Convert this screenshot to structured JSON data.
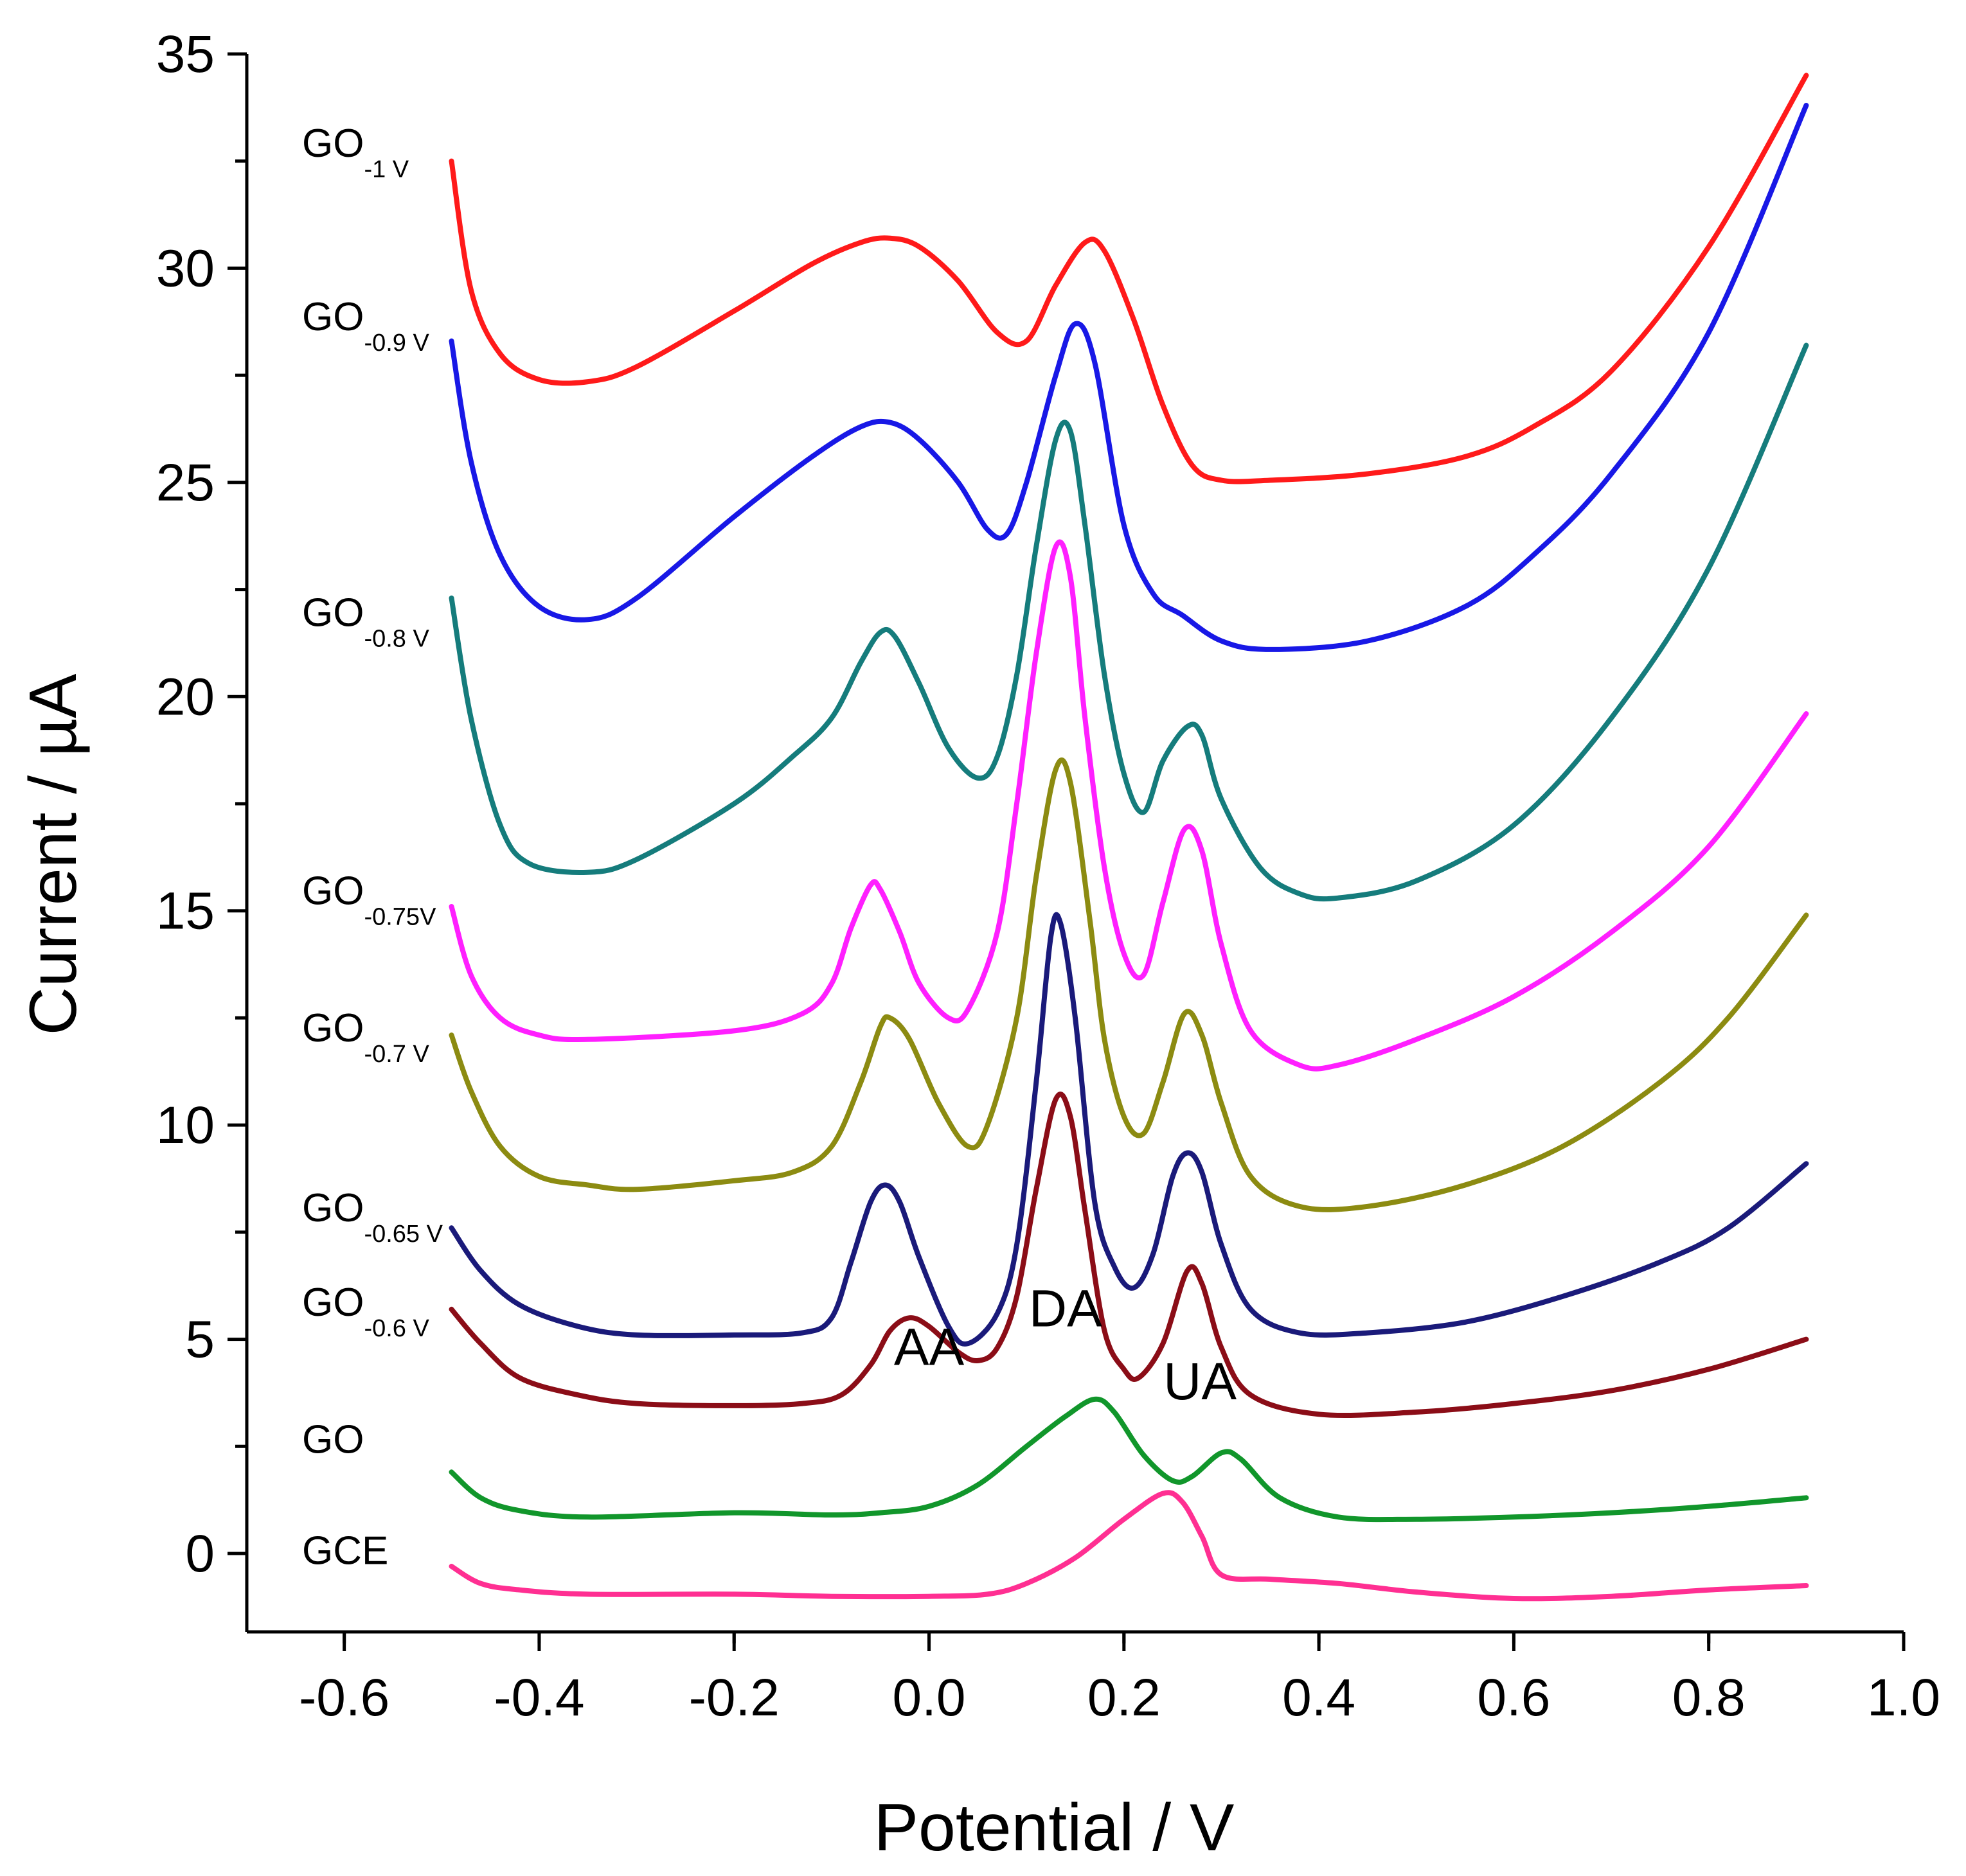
{
  "chart_data": {
    "type": "line",
    "title": "",
    "xlabel": "Potential / V",
    "ylabel": "Current / µA",
    "xlim": [
      -0.7,
      1.0
    ],
    "ylim": [
      -2,
      35
    ],
    "xticks": [
      "-0.6",
      "-0.4",
      "-0.2",
      "0.0",
      "0.2",
      "0.4",
      "0.6",
      "0.8",
      "1.0"
    ],
    "xtick_values": [
      -0.6,
      -0.4,
      -0.2,
      0.0,
      0.2,
      0.4,
      0.6,
      0.8,
      1.0
    ],
    "yticks": [
      "0",
      "5",
      "10",
      "15",
      "20",
      "25",
      "30",
      "35"
    ],
    "ytick_values": [
      0,
      5,
      10,
      15,
      20,
      25,
      30,
      35
    ],
    "annotations": [
      {
        "text": "AA",
        "x": 0.0,
        "y": 4.4
      },
      {
        "text": "DA",
        "x": 0.14,
        "y": 5.3
      },
      {
        "text": "UA",
        "x": 0.278,
        "y": 3.6
      }
    ],
    "series": [
      {
        "name": "GCE",
        "label": "GCE",
        "sub": "",
        "color": "#ff2f92",
        "label_y": -0.25,
        "points": [
          [
            -0.49,
            -0.3
          ],
          [
            -0.46,
            -0.7
          ],
          [
            -0.42,
            -0.85
          ],
          [
            -0.35,
            -0.95
          ],
          [
            -0.2,
            -0.95
          ],
          [
            -0.1,
            -1.0
          ],
          [
            0.0,
            -1.0
          ],
          [
            0.06,
            -0.95
          ],
          [
            0.1,
            -0.7
          ],
          [
            0.15,
            -0.1
          ],
          [
            0.2,
            0.8
          ],
          [
            0.24,
            1.4
          ],
          [
            0.26,
            1.2
          ],
          [
            0.28,
            0.4
          ],
          [
            0.3,
            -0.5
          ],
          [
            0.35,
            -0.6
          ],
          [
            0.42,
            -0.7
          ],
          [
            0.5,
            -0.9
          ],
          [
            0.6,
            -1.05
          ],
          [
            0.7,
            -1.0
          ],
          [
            0.8,
            -0.85
          ],
          [
            0.9,
            -0.75
          ]
        ]
      },
      {
        "name": "GO",
        "label": "GO",
        "sub": "",
        "color": "#11962b",
        "label_y": 2.35,
        "points": [
          [
            -0.49,
            1.9
          ],
          [
            -0.46,
            1.3
          ],
          [
            -0.42,
            1.0
          ],
          [
            -0.35,
            0.85
          ],
          [
            -0.2,
            0.95
          ],
          [
            -0.1,
            0.9
          ],
          [
            -0.05,
            0.95
          ],
          [
            0.0,
            1.1
          ],
          [
            0.05,
            1.6
          ],
          [
            0.1,
            2.5
          ],
          [
            0.14,
            3.2
          ],
          [
            0.17,
            3.6
          ],
          [
            0.19,
            3.3
          ],
          [
            0.22,
            2.3
          ],
          [
            0.25,
            1.7
          ],
          [
            0.27,
            1.8
          ],
          [
            0.3,
            2.35
          ],
          [
            0.32,
            2.2
          ],
          [
            0.36,
            1.3
          ],
          [
            0.42,
            0.85
          ],
          [
            0.5,
            0.8
          ],
          [
            0.6,
            0.85
          ],
          [
            0.7,
            0.95
          ],
          [
            0.8,
            1.1
          ],
          [
            0.9,
            1.3
          ]
        ]
      },
      {
        "name": "GO-0.6 V",
        "label": "GO",
        "sub": "-0.6 V",
        "color": "#8b0d17",
        "label_y": 5.55,
        "points": [
          [
            -0.49,
            5.7
          ],
          [
            -0.46,
            4.9
          ],
          [
            -0.42,
            4.1
          ],
          [
            -0.36,
            3.7
          ],
          [
            -0.3,
            3.5
          ],
          [
            -0.2,
            3.45
          ],
          [
            -0.13,
            3.5
          ],
          [
            -0.09,
            3.7
          ],
          [
            -0.06,
            4.4
          ],
          [
            -0.04,
            5.2
          ],
          [
            -0.02,
            5.5
          ],
          [
            0.0,
            5.3
          ],
          [
            0.03,
            4.7
          ],
          [
            0.05,
            4.5
          ],
          [
            0.07,
            4.8
          ],
          [
            0.09,
            6.0
          ],
          [
            0.11,
            8.5
          ],
          [
            0.13,
            10.6
          ],
          [
            0.145,
            10.2
          ],
          [
            0.16,
            8.0
          ],
          [
            0.18,
            5.2
          ],
          [
            0.2,
            4.3
          ],
          [
            0.215,
            4.1
          ],
          [
            0.24,
            4.9
          ],
          [
            0.265,
            6.6
          ],
          [
            0.28,
            6.3
          ],
          [
            0.3,
            4.8
          ],
          [
            0.33,
            3.7
          ],
          [
            0.4,
            3.25
          ],
          [
            0.5,
            3.3
          ],
          [
            0.6,
            3.5
          ],
          [
            0.7,
            3.8
          ],
          [
            0.8,
            4.3
          ],
          [
            0.9,
            5.0
          ]
        ]
      },
      {
        "name": "GO-0.65 V",
        "label": "GO",
        "sub": "-0.65 V",
        "color": "#1a1a7a",
        "label_y": 7.75,
        "points": [
          [
            -0.49,
            7.6
          ],
          [
            -0.46,
            6.6
          ],
          [
            -0.42,
            5.8
          ],
          [
            -0.36,
            5.3
          ],
          [
            -0.3,
            5.1
          ],
          [
            -0.2,
            5.1
          ],
          [
            -0.13,
            5.15
          ],
          [
            -0.1,
            5.5
          ],
          [
            -0.08,
            6.8
          ],
          [
            -0.06,
            8.2
          ],
          [
            -0.045,
            8.6
          ],
          [
            -0.03,
            8.2
          ],
          [
            -0.01,
            6.9
          ],
          [
            0.02,
            5.3
          ],
          [
            0.04,
            4.9
          ],
          [
            0.07,
            5.6
          ],
          [
            0.09,
            7.2
          ],
          [
            0.11,
            11.0
          ],
          [
            0.125,
            14.4
          ],
          [
            0.135,
            14.7
          ],
          [
            0.15,
            12.5
          ],
          [
            0.17,
            8.2
          ],
          [
            0.19,
            6.7
          ],
          [
            0.21,
            6.2
          ],
          [
            0.23,
            7.0
          ],
          [
            0.25,
            8.8
          ],
          [
            0.265,
            9.35
          ],
          [
            0.28,
            8.9
          ],
          [
            0.3,
            7.2
          ],
          [
            0.33,
            5.7
          ],
          [
            0.38,
            5.15
          ],
          [
            0.45,
            5.15
          ],
          [
            0.55,
            5.4
          ],
          [
            0.65,
            6.0
          ],
          [
            0.75,
            6.8
          ],
          [
            0.82,
            7.6
          ],
          [
            0.9,
            9.1
          ]
        ]
      },
      {
        "name": "GO-0.7 V",
        "label": "GO",
        "sub": "-0.7 V",
        "color": "#8c8b11",
        "label_y": 11.95,
        "points": [
          [
            -0.49,
            12.1
          ],
          [
            -0.47,
            10.8
          ],
          [
            -0.44,
            9.5
          ],
          [
            -0.4,
            8.8
          ],
          [
            -0.35,
            8.6
          ],
          [
            -0.3,
            8.5
          ],
          [
            -0.2,
            8.7
          ],
          [
            -0.14,
            8.9
          ],
          [
            -0.1,
            9.5
          ],
          [
            -0.07,
            11.0
          ],
          [
            -0.05,
            12.3
          ],
          [
            -0.04,
            12.5
          ],
          [
            -0.02,
            12.0
          ],
          [
            0.01,
            10.5
          ],
          [
            0.04,
            9.5
          ],
          [
            0.06,
            10.0
          ],
          [
            0.09,
            12.5
          ],
          [
            0.11,
            15.8
          ],
          [
            0.13,
            18.3
          ],
          [
            0.145,
            18.0
          ],
          [
            0.165,
            14.8
          ],
          [
            0.18,
            12.0
          ],
          [
            0.2,
            10.2
          ],
          [
            0.22,
            9.8
          ],
          [
            0.24,
            11.0
          ],
          [
            0.262,
            12.6
          ],
          [
            0.28,
            12.1
          ],
          [
            0.3,
            10.5
          ],
          [
            0.33,
            8.8
          ],
          [
            0.38,
            8.1
          ],
          [
            0.45,
            8.1
          ],
          [
            0.55,
            8.6
          ],
          [
            0.65,
            9.5
          ],
          [
            0.75,
            11.0
          ],
          [
            0.82,
            12.5
          ],
          [
            0.9,
            14.9
          ]
        ]
      },
      {
        "name": "GO-0.75V",
        "label": "GO",
        "sub": "-0.75V",
        "color": "#ff1fff",
        "label_y": 15.15,
        "points": [
          [
            -0.49,
            15.1
          ],
          [
            -0.47,
            13.5
          ],
          [
            -0.44,
            12.5
          ],
          [
            -0.4,
            12.1
          ],
          [
            -0.35,
            12.0
          ],
          [
            -0.2,
            12.2
          ],
          [
            -0.13,
            12.6
          ],
          [
            -0.1,
            13.3
          ],
          [
            -0.08,
            14.6
          ],
          [
            -0.06,
            15.6
          ],
          [
            -0.05,
            15.5
          ],
          [
            -0.03,
            14.5
          ],
          [
            -0.01,
            13.3
          ],
          [
            0.02,
            12.5
          ],
          [
            0.04,
            12.7
          ],
          [
            0.07,
            14.5
          ],
          [
            0.09,
            17.5
          ],
          [
            0.11,
            21.0
          ],
          [
            0.13,
            23.5
          ],
          [
            0.145,
            22.8
          ],
          [
            0.16,
            19.5
          ],
          [
            0.18,
            16.0
          ],
          [
            0.2,
            14.0
          ],
          [
            0.22,
            13.5
          ],
          [
            0.24,
            15.2
          ],
          [
            0.262,
            16.9
          ],
          [
            0.28,
            16.4
          ],
          [
            0.3,
            14.2
          ],
          [
            0.33,
            12.2
          ],
          [
            0.38,
            11.4
          ],
          [
            0.42,
            11.4
          ],
          [
            0.5,
            12.0
          ],
          [
            0.6,
            13.0
          ],
          [
            0.7,
            14.5
          ],
          [
            0.8,
            16.5
          ],
          [
            0.9,
            19.6
          ]
        ]
      },
      {
        "name": "GO-0.8 V",
        "label": "GO",
        "sub": "-0.8 V",
        "color": "#157c7c",
        "label_y": 21.65,
        "points": [
          [
            -0.49,
            22.3
          ],
          [
            -0.47,
            19.5
          ],
          [
            -0.44,
            17.0
          ],
          [
            -0.41,
            16.1
          ],
          [
            -0.35,
            15.9
          ],
          [
            -0.3,
            16.2
          ],
          [
            -0.2,
            17.5
          ],
          [
            -0.14,
            18.6
          ],
          [
            -0.1,
            19.5
          ],
          [
            -0.07,
            20.8
          ],
          [
            -0.05,
            21.5
          ],
          [
            -0.035,
            21.4
          ],
          [
            -0.01,
            20.3
          ],
          [
            0.02,
            18.8
          ],
          [
            0.05,
            18.1
          ],
          [
            0.07,
            18.6
          ],
          [
            0.09,
            20.5
          ],
          [
            0.11,
            23.5
          ],
          [
            0.13,
            26.0
          ],
          [
            0.145,
            26.2
          ],
          [
            0.16,
            24.0
          ],
          [
            0.18,
            20.5
          ],
          [
            0.2,
            18.2
          ],
          [
            0.22,
            17.3
          ],
          [
            0.24,
            18.5
          ],
          [
            0.265,
            19.3
          ],
          [
            0.28,
            19.1
          ],
          [
            0.3,
            17.6
          ],
          [
            0.34,
            16.0
          ],
          [
            0.38,
            15.4
          ],
          [
            0.42,
            15.3
          ],
          [
            0.5,
            15.7
          ],
          [
            0.6,
            17.0
          ],
          [
            0.7,
            19.5
          ],
          [
            0.8,
            23.0
          ],
          [
            0.9,
            28.2
          ]
        ]
      },
      {
        "name": "GO-0.9 V",
        "label": "GO",
        "sub": "-0.9 V",
        "color": "#1818e6",
        "label_y": 28.55,
        "points": [
          [
            -0.49,
            28.3
          ],
          [
            -0.47,
            25.5
          ],
          [
            -0.44,
            23.3
          ],
          [
            -0.4,
            22.1
          ],
          [
            -0.35,
            21.8
          ],
          [
            -0.3,
            22.3
          ],
          [
            -0.2,
            24.2
          ],
          [
            -0.12,
            25.6
          ],
          [
            -0.07,
            26.3
          ],
          [
            -0.04,
            26.4
          ],
          [
            -0.01,
            26.0
          ],
          [
            0.03,
            25.0
          ],
          [
            0.06,
            23.9
          ],
          [
            0.08,
            23.8
          ],
          [
            0.1,
            25.0
          ],
          [
            0.13,
            27.5
          ],
          [
            0.15,
            28.7
          ],
          [
            0.17,
            27.8
          ],
          [
            0.2,
            24.0
          ],
          [
            0.23,
            22.4
          ],
          [
            0.26,
            21.9
          ],
          [
            0.3,
            21.3
          ],
          [
            0.35,
            21.1
          ],
          [
            0.45,
            21.3
          ],
          [
            0.55,
            22.1
          ],
          [
            0.62,
            23.3
          ],
          [
            0.7,
            25.2
          ],
          [
            0.8,
            28.5
          ],
          [
            0.9,
            33.8
          ]
        ]
      },
      {
        "name": "GO-1 V",
        "label": "GO",
        "sub": "-1 V",
        "color": "#ff1a1a",
        "label_y": 32.6,
        "points": [
          [
            -0.49,
            32.5
          ],
          [
            -0.47,
            29.5
          ],
          [
            -0.44,
            28.0
          ],
          [
            -0.4,
            27.4
          ],
          [
            -0.35,
            27.35
          ],
          [
            -0.3,
            27.7
          ],
          [
            -0.2,
            29.0
          ],
          [
            -0.12,
            30.1
          ],
          [
            -0.07,
            30.6
          ],
          [
            -0.04,
            30.7
          ],
          [
            -0.01,
            30.5
          ],
          [
            0.03,
            29.7
          ],
          [
            0.07,
            28.5
          ],
          [
            0.1,
            28.3
          ],
          [
            0.13,
            29.6
          ],
          [
            0.16,
            30.6
          ],
          [
            0.18,
            30.4
          ],
          [
            0.21,
            28.8
          ],
          [
            0.24,
            26.8
          ],
          [
            0.27,
            25.4
          ],
          [
            0.3,
            25.05
          ],
          [
            0.35,
            25.05
          ],
          [
            0.45,
            25.2
          ],
          [
            0.55,
            25.6
          ],
          [
            0.62,
            26.3
          ],
          [
            0.7,
            27.6
          ],
          [
            0.8,
            30.5
          ],
          [
            0.9,
            34.5
          ]
        ]
      }
    ]
  }
}
